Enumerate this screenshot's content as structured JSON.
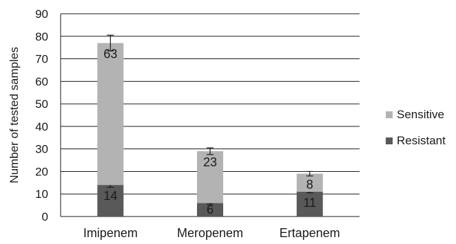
{
  "chart_data": {
    "type": "bar",
    "stacked": true,
    "categories": [
      "Imipenem",
      "Meropenem",
      "Ertapenem"
    ],
    "series": [
      {
        "name": "Resistant",
        "values": [
          14,
          6,
          11
        ],
        "color": "#595959",
        "error": [
          1,
          0.5,
          0.5
        ]
      },
      {
        "name": "Sensitive",
        "values": [
          63,
          23,
          8
        ],
        "color": "#b3b3b3",
        "error": [
          3.5,
          1.5,
          1
        ]
      }
    ],
    "xlabel": "",
    "ylabel": "Number of tested samples",
    "ylim": [
      0,
      90
    ],
    "yticks": [
      0,
      10,
      20,
      30,
      40,
      50,
      60,
      70,
      80,
      90
    ],
    "grid": true,
    "legend_position": "right",
    "data_labels": true
  }
}
